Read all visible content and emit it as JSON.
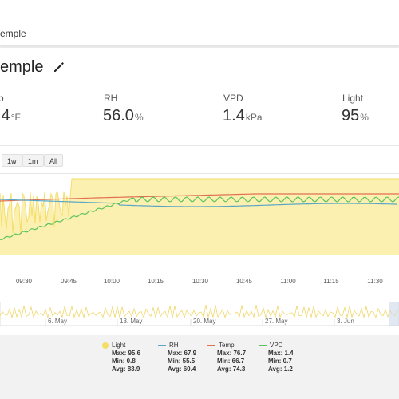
{
  "header": {
    "breadcrumb": "emple"
  },
  "device": {
    "title": "emple",
    "edit_icon": "pencil-icon"
  },
  "metrics": [
    {
      "label": "p",
      "value": ".4",
      "unit": "°F"
    },
    {
      "label": "RH",
      "value": "56.0",
      "unit": "%"
    },
    {
      "label": "VPD",
      "value": "1.4",
      "unit": "kPa"
    },
    {
      "label": "Light",
      "value": "95",
      "unit": "%"
    }
  ],
  "range_buttons": [
    "1w",
    "1m",
    "All"
  ],
  "chart": {
    "x_labels": [
      "09:30",
      "09:45",
      "10:00",
      "10:15",
      "10:30",
      "10:45",
      "11:00",
      "11:15",
      "11:30"
    ],
    "navigator_labels": [
      "6. May",
      "13. May",
      "20. May",
      "27. May",
      "3. Jun"
    ]
  },
  "colors": {
    "light": "#f5dd66",
    "light_fill": "#fbf0b0",
    "rh": "#5aa6c4",
    "temp": "#e07050",
    "vpd": "#5cc35c"
  },
  "legend": [
    {
      "name": "Light",
      "symbol": "dot",
      "max": "Max: 95.6",
      "min": "Min: 0.8",
      "avg": "Avg: 83.9"
    },
    {
      "name": "RH",
      "symbol": "line",
      "max": "Max: 67.9",
      "min": "Min: 55.5",
      "avg": "Avg: 60.4"
    },
    {
      "name": "Temp",
      "symbol": "line",
      "max": "Max: 76.7",
      "min": "Min: 66.7",
      "avg": "Avg: 74.3"
    },
    {
      "name": "VPD",
      "symbol": "line",
      "max": "Max: 1.4",
      "min": "Min: 0.7",
      "avg": "Avg: 1.2"
    }
  ]
}
